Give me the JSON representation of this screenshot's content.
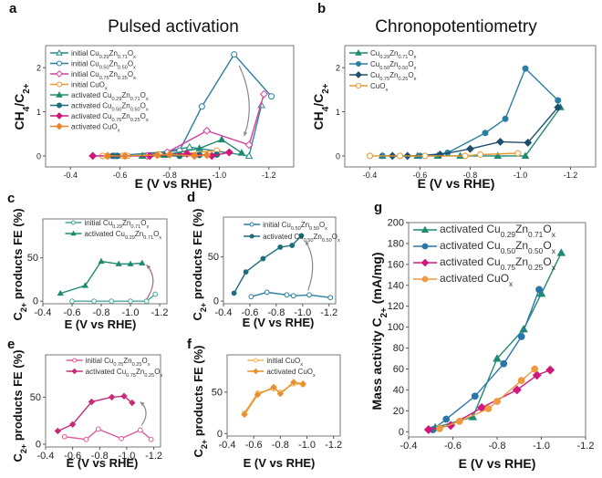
{
  "figure": {
    "panel_labels": [
      "a",
      "b",
      "c",
      "d",
      "e",
      "f",
      "g"
    ]
  },
  "chart_data": [
    {
      "id": "a",
      "type": "line",
      "title": "Pulsed activation",
      "xlabel": "E (V vs RHE)",
      "ylabel": "CH4/C2+",
      "xlim": [
        -0.3,
        -1.3
      ],
      "ylim": [
        -0.25,
        2.5
      ],
      "xticks": [
        -0.4,
        -0.6,
        -0.8,
        -1.0,
        -1.2
      ],
      "yticks": [
        0,
        1,
        2
      ],
      "legend": "top-left",
      "series": [
        {
          "name": "initial Cu0.29Zn0.71Ox",
          "color": "#2a8c8c",
          "marker": "triangle-open",
          "x": [
            -0.69,
            -0.88,
            -1.12,
            -1.17
          ],
          "y": [
            0.0,
            0.2,
            0.0,
            1.15
          ]
        },
        {
          "name": "initial Cu0.50Zn0.50Ox",
          "color": "#2a7fa0",
          "marker": "circle-open",
          "x": [
            -0.58,
            -0.84,
            -0.93,
            -1.06,
            -1.21
          ],
          "y": [
            0.0,
            0.12,
            1.12,
            2.3,
            1.35
          ]
        },
        {
          "name": "initial Cu0.75Zn0.25Ox",
          "color": "#d63fa0",
          "marker": "diamond-open",
          "x": [
            -0.71,
            -0.79,
            -0.95,
            -1.12,
            -1.18
          ],
          "y": [
            0.0,
            0.08,
            0.57,
            0.25,
            1.4
          ]
        },
        {
          "name": "initial CuOx",
          "color": "#e8962e",
          "marker": "circle-open",
          "x": [
            -0.53,
            -0.55,
            -0.61,
            -0.63,
            -0.76,
            -0.86,
            -0.99
          ],
          "y": [
            0.0,
            0.0,
            0.0,
            0.0,
            0.03,
            0.05,
            0.12
          ]
        },
        {
          "name": "activated Cu0.29Zn0.71Ox",
          "color": "#1f8a70",
          "marker": "triangle",
          "x": [
            -0.69,
            -0.78,
            -0.92,
            -1.01,
            -1.09
          ],
          "y": [
            0.0,
            0.02,
            0.17,
            0.37,
            0.07
          ]
        },
        {
          "name": "activated Cu0.50Zn0.50Ox",
          "color": "#1d6c7c",
          "marker": "circle",
          "x": [
            -0.57,
            -0.59,
            -0.84,
            -0.92,
            -0.99
          ],
          "y": [
            0.0,
            0.0,
            0.0,
            0.02,
            0.03
          ]
        },
        {
          "name": "activated Cu0.75Zn0.25Ox",
          "color": "#d0187c",
          "marker": "diamond",
          "x": [
            -0.49,
            -0.72,
            -0.87,
            -0.97,
            -1.04
          ],
          "y": [
            0.0,
            0.0,
            0.05,
            0.0,
            0.08
          ]
        },
        {
          "name": "activated CuOx",
          "color": "#e8852e",
          "marker": "diamond",
          "x": [
            -0.55,
            -0.62,
            -0.75,
            -0.8,
            -0.9,
            -0.95
          ],
          "y": [
            0.0,
            0.0,
            0.02,
            0.03,
            0.0,
            0.02
          ]
        }
      ],
      "annotations": [
        "arrow from initial Cu0.50Zn0.50Ox peak downward"
      ]
    },
    {
      "id": "b",
      "type": "line",
      "title": "Chronopotentiometry",
      "xlabel": "E (V vs RHE)",
      "ylabel": "CH4/C2+",
      "xlim": [
        -0.3,
        -1.3
      ],
      "ylim": [
        -0.25,
        2.5
      ],
      "xticks": [
        -0.4,
        -0.6,
        -0.8,
        -1.0,
        -1.2
      ],
      "yticks": [
        0,
        1,
        2
      ],
      "legend": "top-left",
      "series": [
        {
          "name": "Cu0.29Zn0.71Ox",
          "color": "#1f8a70",
          "marker": "triangle",
          "x": [
            -0.45,
            -0.59,
            -0.67,
            -0.76,
            -0.91,
            -1.02,
            -1.16
          ],
          "y": [
            0.0,
            0.0,
            0.0,
            0.0,
            0.0,
            0.0,
            1.1
          ]
        },
        {
          "name": "Cu0.50Zn0.50Ox",
          "color": "#2a7fa0",
          "marker": "circle",
          "x": [
            -0.45,
            -0.6,
            -0.71,
            -0.86,
            -0.94,
            -1.02,
            -1.15
          ],
          "y": [
            0.0,
            0.0,
            0.07,
            0.52,
            0.84,
            1.98,
            1.26
          ]
        },
        {
          "name": "Cu0.75Zn0.25Ox",
          "color": "#1d4f6e",
          "marker": "diamond",
          "x": [
            -0.49,
            -0.55,
            -0.68,
            -0.8,
            -0.92,
            -1.03,
            -1.15
          ],
          "y": [
            0.0,
            0.0,
            0.03,
            0.16,
            0.32,
            0.3,
            1.1
          ]
        },
        {
          "name": "CuOx",
          "color": "#e8962e",
          "marker": "circle-open",
          "x": [
            -0.4,
            -0.52,
            -0.62,
            -0.78,
            -0.84,
            -0.99
          ],
          "y": [
            0.0,
            0.0,
            0.0,
            0.0,
            0.03,
            0.06
          ]
        }
      ]
    },
    {
      "id": "c",
      "type": "line",
      "xlabel": "E (V vs RHE)",
      "ylabel": "C2+ products FE (%)",
      "xlim": [
        -0.4,
        -1.25
      ],
      "ylim": [
        -3,
        95
      ],
      "xticks": [
        -0.4,
        -0.6,
        -0.8,
        -1.0,
        -1.2
      ],
      "yticks": [
        0,
        50
      ],
      "legend": "top-right",
      "series": [
        {
          "name": "initial Cu0.29Zn0.71Ox",
          "color": "#4aa89a",
          "marker": "circle-open",
          "x": [
            -0.6,
            -0.75,
            -0.87,
            -1.0,
            -1.11,
            -1.17
          ],
          "y": [
            0,
            0,
            0,
            0,
            0,
            8
          ]
        },
        {
          "name": "activated Cu0.29Zn0.71Ox",
          "color": "#1f8a70",
          "marker": "triangle",
          "x": [
            -0.52,
            -0.69,
            -0.8,
            -0.92,
            -1.0,
            -1.08
          ],
          "y": [
            9,
            18,
            46,
            43,
            43,
            44
          ]
        }
      ]
    },
    {
      "id": "d",
      "type": "line",
      "xlabel": "E (V vs RHE)",
      "ylabel": "C2+ products FE (%)",
      "xlim": [
        -0.4,
        -1.25
      ],
      "ylim": [
        -3,
        95
      ],
      "xticks": [
        -0.4,
        -0.6,
        -0.8,
        -1.0,
        -1.2
      ],
      "yticks": [
        0,
        50
      ],
      "legend": "top-right",
      "series": [
        {
          "name": "initial Cu0.50Zn0.50Ox",
          "color": "#2a7fa0",
          "marker": "circle-open",
          "x": [
            -0.61,
            -0.73,
            -0.88,
            -0.93,
            -1.05,
            -1.21
          ],
          "y": [
            5,
            10,
            7,
            6,
            7,
            4
          ]
        },
        {
          "name": "activated Cu0.50Zn0.50Ox",
          "color": "#1d6c7c",
          "marker": "circle",
          "x": [
            -0.48,
            -0.57,
            -0.7,
            -0.83,
            -0.92,
            -0.99
          ],
          "y": [
            9,
            33,
            48,
            61,
            63,
            74
          ]
        }
      ]
    },
    {
      "id": "e",
      "type": "line",
      "xlabel": "E (V vs RHE)",
      "ylabel": "C2+ products FE (%)",
      "xlim": [
        -0.4,
        -1.25
      ],
      "ylim": [
        -3,
        95
      ],
      "xticks": [
        -0.4,
        -0.6,
        -0.8,
        -1.0,
        -1.2
      ],
      "yticks": [
        0,
        50
      ],
      "legend": "top-right",
      "series": [
        {
          "name": "initial Cu0.75Zn0.25Ox",
          "color": "#e05a9f",
          "marker": "circle-open",
          "x": [
            -0.54,
            -0.7,
            -0.79,
            -0.96,
            -1.1,
            -1.18
          ],
          "y": [
            8,
            5,
            16,
            6,
            15,
            5
          ]
        },
        {
          "name": "activated Cu0.75Zn0.25Ox",
          "color": "#c72c78",
          "marker": "diamond",
          "x": [
            -0.49,
            -0.6,
            -0.74,
            -0.89,
            -0.98,
            -1.04
          ],
          "y": [
            14,
            21,
            45,
            50,
            51,
            44
          ]
        }
      ]
    },
    {
      "id": "f",
      "type": "line",
      "xlabel": "E (V vs RHE)",
      "ylabel": "C2+ products FE (%)",
      "xlim": [
        -0.4,
        -1.25
      ],
      "ylim": [
        -3,
        95
      ],
      "xticks": [
        -0.4,
        -0.6,
        -0.8,
        -1.0,
        -1.2
      ],
      "yticks": [
        0,
        50
      ],
      "legend": "top-right",
      "series": [
        {
          "name": "initial CuOx",
          "color": "#f2b35a",
          "marker": "circle-open",
          "x": [
            -0.53,
            -0.63,
            -0.75,
            -0.8,
            -0.9,
            -0.97
          ],
          "y": [
            25,
            49,
            54,
            50,
            60,
            59
          ]
        },
        {
          "name": "activated CuOx",
          "color": "#e8902e",
          "marker": "diamond",
          "x": [
            -0.53,
            -0.63,
            -0.75,
            -0.8,
            -0.9,
            -0.97
          ],
          "y": [
            23,
            47,
            56,
            48,
            62,
            60
          ]
        }
      ]
    },
    {
      "id": "g",
      "type": "line",
      "xlabel": "E (V vs RHE)",
      "ylabel": "Mass activity C2+ (mA/mg)",
      "xlim": [
        -0.4,
        -1.2
      ],
      "ylim": [
        -5,
        200
      ],
      "xticks": [
        -0.4,
        -0.6,
        -0.8,
        -1.0,
        -1.2
      ],
      "yticks": [
        0,
        20,
        40,
        60,
        80,
        100,
        120,
        140,
        160,
        180,
        200
      ],
      "legend": "top-left",
      "series": [
        {
          "name": "activated Cu0.29Zn0.71Ox",
          "color": "#1f8a70",
          "marker": "triangle",
          "x": [
            -0.52,
            -0.69,
            -0.8,
            -0.92,
            -1.0,
            -1.09
          ],
          "y": [
            4,
            14,
            70,
            98,
            132,
            171
          ]
        },
        {
          "name": "activated Cu0.50Zn0.50Ox",
          "color": "#2a76a8",
          "marker": "circle",
          "x": [
            -0.51,
            -0.57,
            -0.7,
            -0.83,
            -0.91,
            -0.99
          ],
          "y": [
            2,
            12,
            34,
            65,
            91,
            136
          ]
        },
        {
          "name": "activated Cu0.75Zn0.25Ox",
          "color": "#d0187c",
          "marker": "diamond",
          "x": [
            -0.49,
            -0.59,
            -0.73,
            -0.89,
            -0.98,
            -1.04
          ],
          "y": [
            2,
            6,
            23,
            40,
            54,
            59
          ]
        },
        {
          "name": "activated CuOx",
          "color": "#ee9a3e",
          "marker": "circle",
          "x": [
            -0.54,
            -0.63,
            -0.76,
            -0.8,
            -0.91,
            -0.97
          ],
          "y": [
            3,
            10,
            22,
            29,
            49,
            60
          ]
        }
      ]
    }
  ]
}
